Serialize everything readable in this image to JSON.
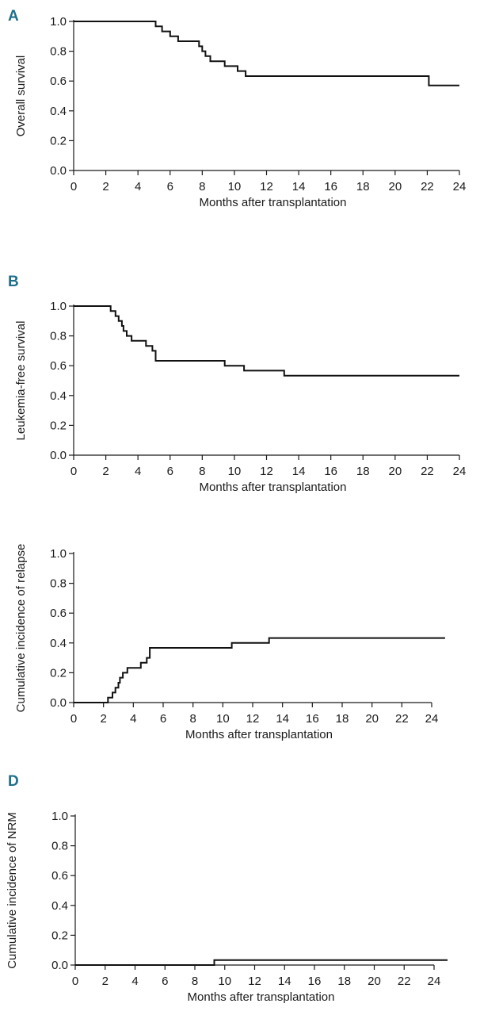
{
  "chart_data": [
    {
      "type": "line",
      "panel_label": "A",
      "xlabel": "Months after transplantation",
      "ylabel": "Overall survival",
      "xlim": [
        0,
        24
      ],
      "ylim": [
        0,
        1.0
      ],
      "xticks": [
        "0",
        "2",
        "4",
        "6",
        "8",
        "10",
        "12",
        "14",
        "16",
        "18",
        "20",
        "22",
        "24"
      ],
      "yticks": [
        "0.0",
        "0.2",
        "0.4",
        "0.6",
        "0.8",
        "1.0"
      ],
      "series": [
        {
          "x": [
            0,
            5.1,
            5.5,
            6.0,
            6.5,
            7.8,
            8.0,
            8.2,
            8.5,
            9.4,
            10.2,
            10.7,
            22.1,
            24.0
          ],
          "y": [
            1.0,
            0.967,
            0.933,
            0.9,
            0.867,
            0.833,
            0.8,
            0.767,
            0.733,
            0.7,
            0.667,
            0.633,
            0.57,
            0.57
          ]
        }
      ]
    },
    {
      "type": "line",
      "panel_label": "B",
      "xlabel": "Months after transplantation",
      "ylabel": "Leukemia-free survival",
      "xlim": [
        0,
        24
      ],
      "ylim": [
        0,
        1.0
      ],
      "xticks": [
        "0",
        "2",
        "4",
        "6",
        "8",
        "10",
        "12",
        "14",
        "16",
        "18",
        "20",
        "22",
        "24"
      ],
      "yticks": [
        "0.0",
        "0.2",
        "0.4",
        "0.6",
        "0.8",
        "1.0"
      ],
      "series": [
        {
          "x": [
            0,
            2.3,
            2.6,
            2.8,
            3.0,
            3.1,
            3.3,
            3.6,
            4.5,
            4.9,
            5.1,
            9.4,
            10.6,
            13.1,
            24.0
          ],
          "y": [
            1.0,
            0.967,
            0.933,
            0.9,
            0.867,
            0.833,
            0.8,
            0.767,
            0.733,
            0.7,
            0.633,
            0.6,
            0.567,
            0.533,
            0.533
          ]
        }
      ]
    },
    {
      "type": "line",
      "panel_label": "",
      "xlabel": "Months after transplantation",
      "ylabel": "Cumulative incidence of relapse",
      "xlim": [
        0,
        24
      ],
      "ylim": [
        0,
        1.0
      ],
      "xticks": [
        "0",
        "2",
        "4",
        "6",
        "8",
        "10",
        "12",
        "14",
        "16",
        "18",
        "20",
        "22",
        "24"
      ],
      "yticks": [
        "0.0",
        "0.2",
        "0.4",
        "0.6",
        "0.8",
        "1.0"
      ],
      "series": [
        {
          "x": [
            0,
            2.3,
            2.6,
            2.8,
            3.0,
            3.1,
            3.3,
            3.6,
            4.5,
            4.9,
            5.1,
            10.6,
            13.1,
            24.9
          ],
          "y": [
            0.0,
            0.033,
            0.067,
            0.1,
            0.133,
            0.167,
            0.2,
            0.233,
            0.267,
            0.3,
            0.367,
            0.4,
            0.433,
            0.433
          ]
        }
      ]
    },
    {
      "type": "line",
      "panel_label": "D",
      "xlabel": "Months after transplantation",
      "ylabel": "Cumulative incidence of NRM",
      "xlim": [
        0,
        24
      ],
      "ylim": [
        0,
        1.0
      ],
      "xticks": [
        "0",
        "2",
        "4",
        "6",
        "8",
        "10",
        "12",
        "14",
        "16",
        "18",
        "20",
        "22",
        "24"
      ],
      "yticks": [
        "0.0",
        "0.2",
        "0.4",
        "0.6",
        "0.8",
        "1.0"
      ],
      "series": [
        {
          "x": [
            0,
            9.3,
            24.9
          ],
          "y": [
            0.0,
            0.033,
            0.033
          ]
        }
      ]
    }
  ]
}
